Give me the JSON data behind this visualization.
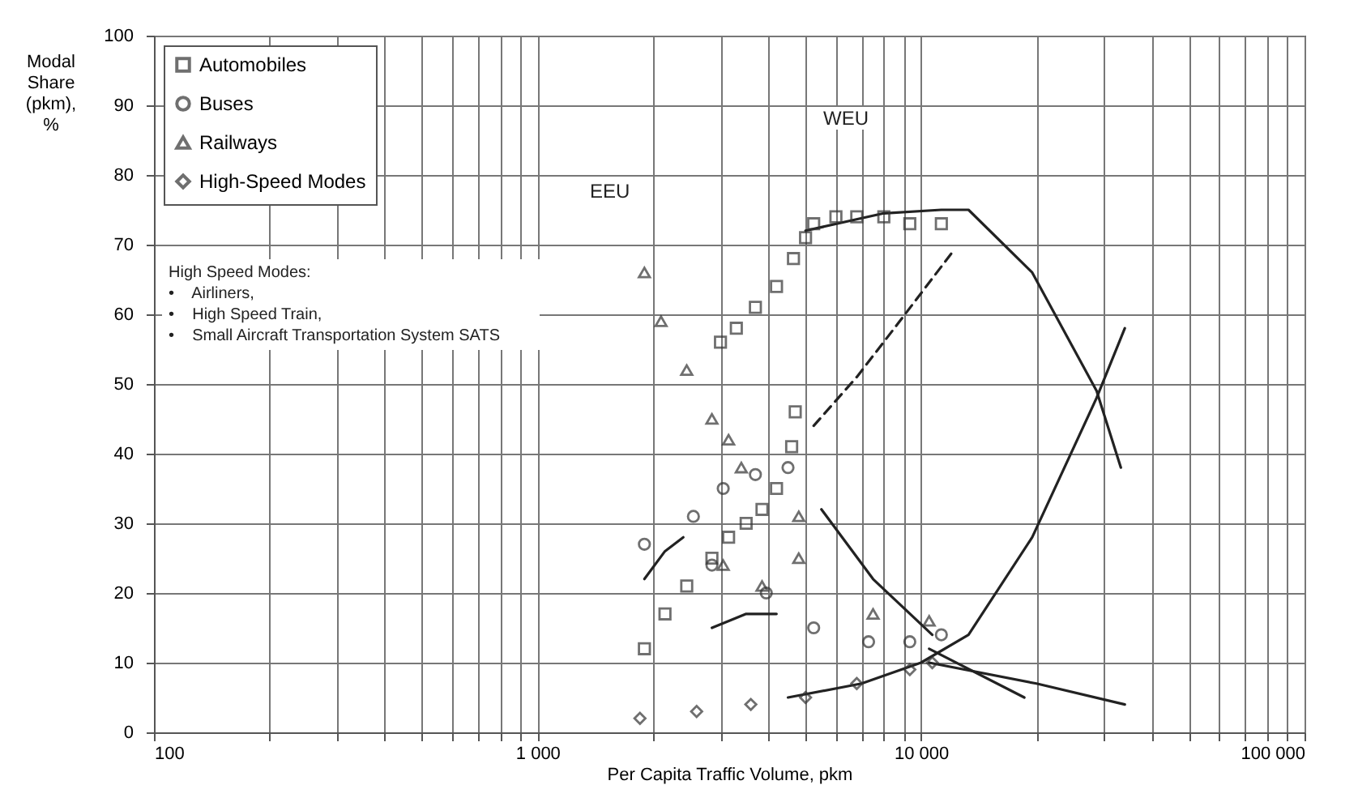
{
  "chart_data": {
    "type": "scatter",
    "xlabel": "Per Capita Traffic Volume, pkm",
    "ylabel": "Modal Share (pkm), %",
    "log": "x",
    "grid": true,
    "legend": "top left",
    "xlim": [
      100,
      100000
    ],
    "ylim": [
      0,
      100
    ],
    "xticks": [
      {
        "value": 100,
        "label": "100"
      },
      {
        "value": 200,
        "label": null
      },
      {
        "value": 300,
        "label": null
      },
      {
        "value": 400,
        "label": null
      },
      {
        "value": 500,
        "label": null
      },
      {
        "value": 600,
        "label": null
      },
      {
        "value": 700,
        "label": null
      },
      {
        "value": 800,
        "label": null
      },
      {
        "value": 900,
        "label": null
      },
      {
        "value": 1000,
        "label": "1 000"
      },
      {
        "value": 2000,
        "label": null
      },
      {
        "value": 3000,
        "label": null
      },
      {
        "value": 4000,
        "label": null
      },
      {
        "value": 5000,
        "label": null
      },
      {
        "value": 6000,
        "label": null
      },
      {
        "value": 7000,
        "label": null
      },
      {
        "value": 8000,
        "label": null
      },
      {
        "value": 9000,
        "label": null
      },
      {
        "value": 10000,
        "label": "10 000"
      },
      {
        "value": 20000,
        "label": null
      },
      {
        "value": 30000,
        "label": null
      },
      {
        "value": 40000,
        "label": null
      },
      {
        "value": 50000,
        "label": null
      },
      {
        "value": 60000,
        "label": null
      },
      {
        "value": 70000,
        "label": null
      },
      {
        "value": 80000,
        "label": null
      },
      {
        "value": 90000,
        "label": null
      },
      {
        "value": 100000,
        "label": "100 000"
      }
    ],
    "yticks": [
      0,
      10,
      20,
      30,
      40,
      50,
      60,
      70,
      80,
      90,
      100
    ],
    "series": [
      {
        "name": "Automobiles",
        "type": "scatter",
        "marker": "square",
        "color": "#333333",
        "x": [
          1900,
          2150,
          2450,
          2850,
          3150,
          3500,
          3850,
          4200,
          3000,
          3300,
          3700,
          4200,
          4650,
          5000,
          5250,
          6000,
          6800,
          8000,
          9350,
          11300,
          4700,
          4600
        ],
        "values": [
          12,
          17,
          21,
          25,
          28,
          30,
          32,
          35,
          56,
          58,
          61,
          64,
          68,
          71,
          73,
          74,
          74,
          74,
          73,
          73,
          46,
          41
        ]
      },
      {
        "name": "Buses",
        "type": "scatter",
        "marker": "circle",
        "color": "#333333",
        "x": [
          1900,
          2550,
          3050,
          3700,
          4500,
          2850,
          3950,
          5250,
          7300,
          9350,
          11300
        ],
        "values": [
          27,
          31,
          35,
          37,
          38,
          24,
          20,
          15,
          13,
          13,
          14
        ]
      },
      {
        "name": "Railways",
        "type": "scatter",
        "marker": "triangle",
        "color": "#333333",
        "x": [
          1900,
          2100,
          2450,
          2850,
          3150,
          3400,
          3050,
          3850,
          4800,
          4800,
          7500,
          10500
        ],
        "values": [
          66,
          59,
          52,
          45,
          42,
          38,
          24,
          21,
          25,
          31,
          17,
          16
        ]
      },
      {
        "name": "High-Speed Modes",
        "type": "scatter",
        "marker": "diamond",
        "color": "#333333",
        "x": [
          1850,
          2600,
          3600,
          5000,
          6800,
          9350,
          10700
        ],
        "values": [
          2,
          3,
          4,
          5,
          7,
          9,
          10
        ]
      },
      {
        "type": "line",
        "color": "#222222",
        "line_style": "solid",
        "x": [
          5000,
          8000,
          11300,
          13300,
          19500,
          28700,
          33200
        ],
        "values": [
          72,
          74.5,
          75,
          75,
          66,
          49,
          38
        ]
      },
      {
        "type": "line",
        "color": "#222222",
        "line_style": "solid",
        "x": [
          4500,
          7000,
          10000,
          13300,
          19500,
          28700,
          34000
        ],
        "values": [
          5,
          7,
          10,
          14,
          28,
          48,
          58
        ]
      },
      {
        "type": "line",
        "color": "#222222",
        "line_style": "dashed",
        "x": [
          5250,
          6800,
          8800,
          12100
        ],
        "values": [
          44,
          51,
          59,
          69
        ]
      },
      {
        "type": "line",
        "color": "#222222",
        "line_style": "solid",
        "x": [
          5500,
          7500,
          10700
        ],
        "values": [
          32,
          22,
          14
        ]
      },
      {
        "type": "line",
        "color": "#222222",
        "line_style": "solid",
        "x": [
          10500,
          18600
        ],
        "values": [
          12,
          5
        ]
      },
      {
        "type": "line",
        "color": "#222222",
        "line_style": "solid",
        "x": [
          10500,
          20000,
          34000
        ],
        "values": [
          10,
          7,
          4
        ]
      },
      {
        "type": "line",
        "color": "#222222",
        "line_style": "solid",
        "x": [
          2850,
          3500,
          4200
        ],
        "values": [
          15,
          17,
          17
        ]
      },
      {
        "type": "line",
        "color": "#222222",
        "line_style": "solid",
        "x": [
          1900,
          2150,
          2400
        ],
        "values": [
          22,
          26,
          28
        ]
      }
    ],
    "annotations": [
      "EEU",
      "WEU",
      "High Speed Modes:",
      "•    Airliners,",
      "•    High Speed Train,",
      "•    Small Aircraft Transportation System SATS"
    ]
  }
}
